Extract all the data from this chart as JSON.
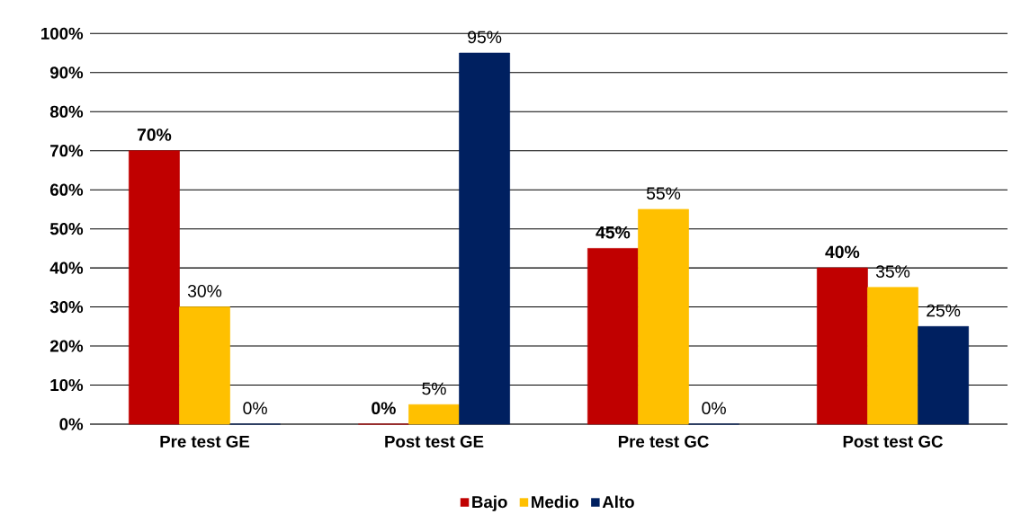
{
  "chart_data": {
    "type": "bar",
    "categories": [
      "Pre test GE",
      "Post test GE",
      "Pre test GC",
      "Post test GC"
    ],
    "series": [
      {
        "name": "Bajo",
        "color": "#c00000",
        "values": [
          70,
          0,
          45,
          40
        ],
        "value_labels": [
          "70%",
          "0%",
          "45%",
          "40%"
        ]
      },
      {
        "name": "Medio",
        "color": "#ffc000",
        "values": [
          30,
          5,
          55,
          35
        ],
        "value_labels": [
          "30%",
          "5%",
          "55%",
          "35%"
        ]
      },
      {
        "name": "Alto",
        "color": "#002060",
        "values": [
          0,
          95,
          0,
          25
        ],
        "value_labels": [
          "0%",
          "95%",
          "0%",
          "25%"
        ]
      }
    ],
    "ylim": [
      0,
      100
    ],
    "yticks": [
      {
        "value": 0,
        "label": "0%"
      },
      {
        "value": 10,
        "label": "10%"
      },
      {
        "value": 20,
        "label": "20%"
      },
      {
        "value": 30,
        "label": "30%"
      },
      {
        "value": 40,
        "label": "40%"
      },
      {
        "value": 50,
        "label": "50%"
      },
      {
        "value": 60,
        "label": "60%"
      },
      {
        "value": 70,
        "label": "70%"
      },
      {
        "value": 80,
        "label": "80%"
      },
      {
        "value": 90,
        "label": "90%"
      },
      {
        "value": 100,
        "label": "100%"
      }
    ],
    "grid": "y",
    "legend": "bottom"
  }
}
